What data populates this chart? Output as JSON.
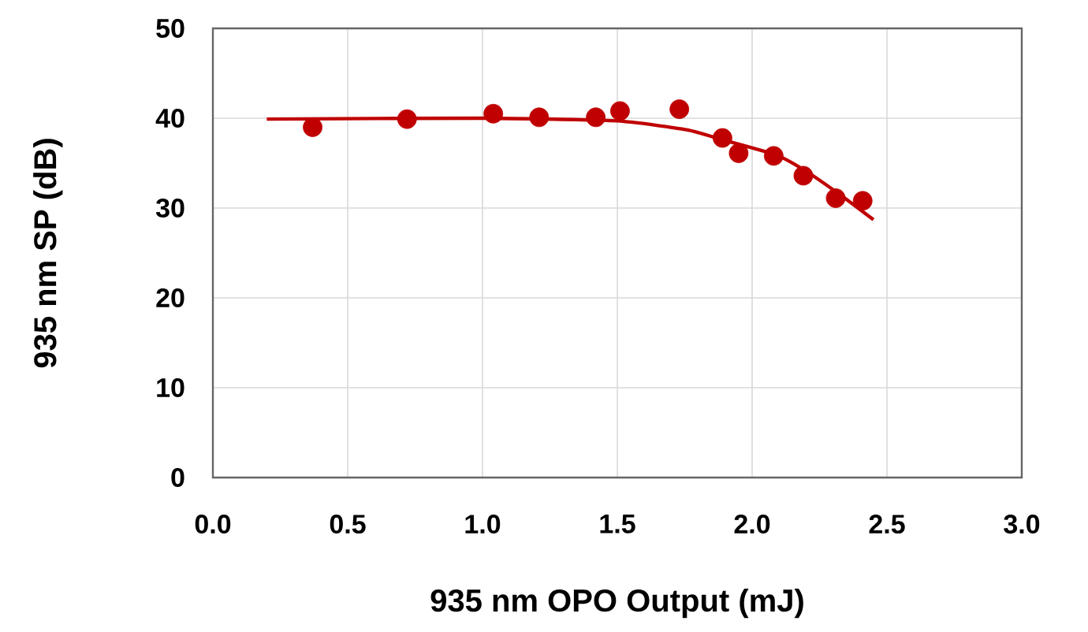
{
  "chart_data": {
    "type": "scatter",
    "xlabel": "935 nm OPO Output (mJ)",
    "ylabel": "935 nm SP (dB)",
    "xlim": [
      0,
      3
    ],
    "ylim": [
      0,
      50
    ],
    "xticks": [
      {
        "value": 0,
        "label": "0.0"
      },
      0.5,
      {
        "value": 1,
        "label": "1.0"
      },
      1.5,
      {
        "value": 2,
        "label": "2.0"
      },
      2.5,
      {
        "value": 3,
        "label": "3.0"
      }
    ],
    "yticks": [
      0,
      10,
      20,
      30,
      40,
      50
    ],
    "grid": true,
    "series": [
      {
        "type": "line",
        "color": "#c00000",
        "marker": "none",
        "x": [
          0.2,
          1.0,
          1.5,
          1.76,
          1.89,
          2.09,
          2.2,
          2.33,
          2.45
        ],
        "values": [
          39.9,
          40.0,
          39.7,
          38.7,
          37.6,
          35.9,
          34.1,
          31.4,
          28.7
        ]
      },
      {
        "color": "#c00000",
        "marker": "circle",
        "x": [
          0.37,
          0.72,
          1.04,
          1.21,
          1.42,
          1.51,
          1.73,
          1.89,
          1.95,
          2.08,
          2.19,
          2.31,
          2.41
        ],
        "values": [
          39.0,
          39.9,
          40.5,
          40.1,
          40.1,
          40.8,
          41.0,
          37.8,
          36.1,
          35.8,
          33.6,
          31.1,
          30.8
        ]
      }
    ]
  }
}
